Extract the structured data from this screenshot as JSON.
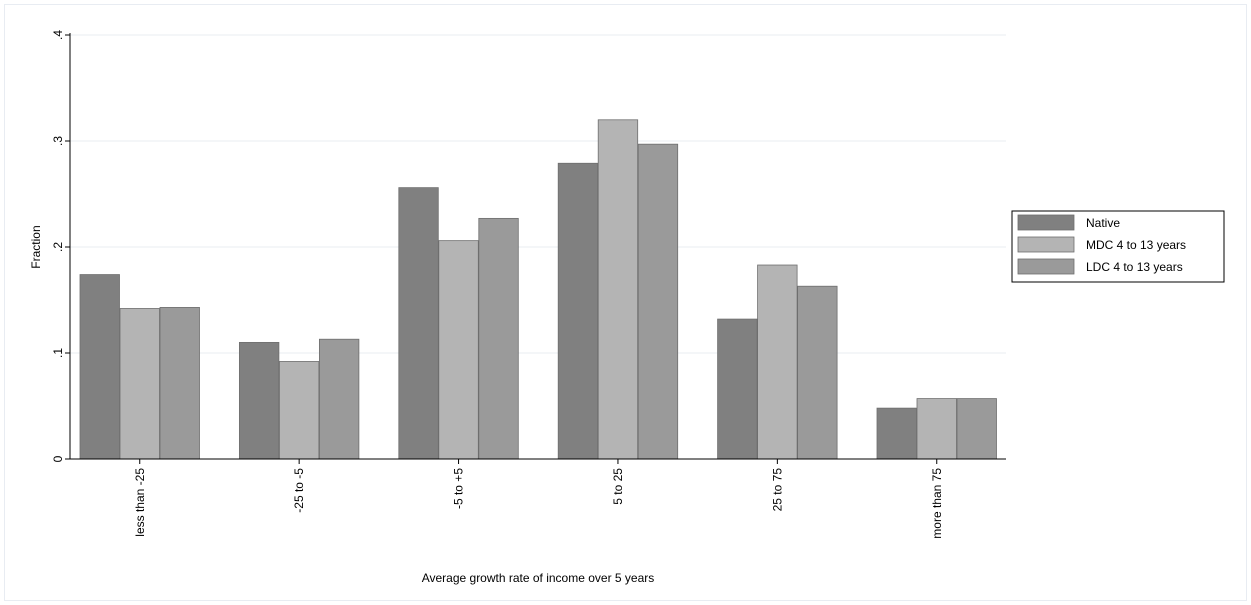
{
  "chart_data": {
    "type": "bar",
    "title": "",
    "xlabel": "Average growth rate of income over 5 years",
    "ylabel": "Fraction",
    "ylim": [
      0,
      0.4
    ],
    "yticks": [
      0,
      0.1,
      0.2,
      0.3,
      0.4
    ],
    "ytick_labels": [
      "0",
      ".1",
      ".2",
      ".3",
      ".4"
    ],
    "grid": true,
    "legend_position": "right",
    "categories": [
      "less than -25",
      "-25 to -5",
      "-5 to +5",
      "5 to 25",
      "25 to 75",
      "more than 75"
    ],
    "series": [
      {
        "name": "Native",
        "color": "#808080",
        "values": [
          0.174,
          0.11,
          0.256,
          0.279,
          0.132,
          0.048
        ]
      },
      {
        "name": "MDC 4 to 13 years",
        "color": "#b4b4b4",
        "values": [
          0.142,
          0.092,
          0.206,
          0.32,
          0.183,
          0.057
        ]
      },
      {
        "name": "LDC 4 to 13 years",
        "color": "#9a9a9a",
        "values": [
          0.143,
          0.113,
          0.227,
          0.297,
          0.163,
          0.057
        ]
      }
    ]
  }
}
